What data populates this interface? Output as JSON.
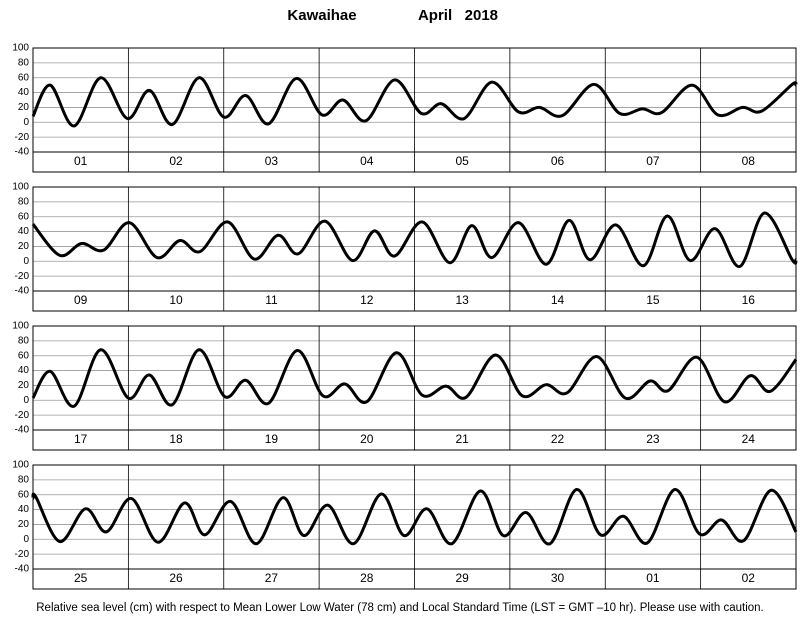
{
  "title": "Kawaihae",
  "subtitle": "April   2018",
  "note": "Relative sea level (cm) with respect to Mean Lower Low Water (78 cm) and Local Standard Time (LST = GMT –10 hr). Please use with caution.",
  "chart_data": [
    {
      "type": "line",
      "categories": [
        "01",
        "02",
        "03",
        "04",
        "05",
        "06",
        "07",
        "08"
      ],
      "x": [
        0,
        0.18,
        0.43,
        0.71,
        0.99,
        1.22,
        1.46,
        1.74,
        2.0,
        2.23,
        2.47,
        2.76,
        3.03,
        3.25,
        3.49,
        3.79,
        4.07,
        4.28,
        4.52,
        4.81,
        5.09,
        5.31,
        5.55,
        5.88,
        6.15,
        6.39,
        6.59,
        6.91,
        7.18,
        7.44,
        7.64,
        7.96,
        8
      ],
      "values": [
        8,
        50,
        -5,
        60,
        5,
        43,
        -3,
        60,
        7,
        36,
        -2,
        59,
        10,
        30,
        2,
        57,
        12,
        25,
        5,
        54,
        14,
        20,
        9,
        51,
        12,
        18,
        13,
        50,
        10,
        20,
        15,
        51,
        50
      ],
      "color": "#000000",
      "xlim": [
        0,
        8
      ],
      "xticks": [
        0,
        1,
        2,
        3,
        4,
        5,
        6,
        7,
        8
      ],
      "ylim": [
        -40,
        100
      ],
      "yticks": [
        -40,
        -20,
        0,
        20,
        40,
        60,
        80,
        100
      ],
      "grid": true
    },
    {
      "type": "line",
      "categories": [
        "09",
        "10",
        "11",
        "12",
        "13",
        "14",
        "15",
        "16"
      ],
      "x": [
        0,
        0.28,
        0.51,
        0.74,
        1.01,
        1.3,
        1.54,
        1.75,
        2.04,
        2.32,
        2.57,
        2.78,
        3.06,
        3.35,
        3.58,
        3.79,
        4.08,
        4.37,
        4.6,
        4.81,
        5.09,
        5.38,
        5.62,
        5.84,
        6.11,
        6.4,
        6.65,
        6.89,
        7.15,
        7.41,
        7.67,
        7.96,
        8
      ],
      "values": [
        50,
        8,
        24,
        15,
        52,
        5,
        28,
        13,
        53,
        3,
        35,
        10,
        54,
        1,
        41,
        7,
        53,
        -2,
        48,
        5,
        52,
        -4,
        55,
        2,
        49,
        -6,
        61,
        1,
        44,
        -7,
        65,
        2,
        2
      ],
      "color": "#000000",
      "xlim": [
        0,
        8
      ],
      "xticks": [
        0,
        1,
        2,
        3,
        4,
        5,
        6,
        7,
        8
      ],
      "ylim": [
        -40,
        100
      ],
      "yticks": [
        -40,
        -20,
        0,
        20,
        40,
        60,
        80,
        100
      ],
      "grid": true
    },
    {
      "type": "line",
      "categories": [
        "17",
        "18",
        "19",
        "20",
        "21",
        "22",
        "23",
        "24"
      ],
      "x": [
        0,
        0.18,
        0.43,
        0.71,
        1.0,
        1.22,
        1.46,
        1.74,
        2.01,
        2.23,
        2.47,
        2.77,
        3.04,
        3.27,
        3.5,
        3.81,
        4.08,
        4.33,
        4.54,
        4.85,
        5.13,
        5.38,
        5.6,
        5.91,
        6.21,
        6.47,
        6.66,
        6.96,
        7.25,
        7.52,
        7.73,
        8
      ],
      "values": [
        3,
        39,
        -8,
        68,
        3,
        34,
        -6,
        68,
        5,
        27,
        -4,
        67,
        6,
        22,
        -2,
        64,
        7,
        19,
        4,
        61,
        6,
        21,
        10,
        59,
        3,
        26,
        13,
        58,
        -2,
        33,
        12,
        55
      ],
      "color": "#000000",
      "xlim": [
        0,
        8
      ],
      "xticks": [
        0,
        1,
        2,
        3,
        4,
        5,
        6,
        7,
        8
      ],
      "ylim": [
        -40,
        100
      ],
      "yticks": [
        -40,
        -20,
        0,
        20,
        40,
        60,
        80,
        100
      ],
      "grid": true
    },
    {
      "type": "line",
      "categories": [
        "25",
        "26",
        "27",
        "28",
        "29",
        "30",
        "01",
        "02"
      ],
      "x": [
        0,
        0.03,
        0.28,
        0.55,
        0.77,
        1.03,
        1.31,
        1.59,
        1.8,
        2.07,
        2.34,
        2.62,
        2.84,
        3.09,
        3.36,
        3.65,
        3.89,
        4.13,
        4.39,
        4.69,
        4.93,
        5.17,
        5.42,
        5.7,
        5.95,
        6.19,
        6.44,
        6.73,
        6.99,
        7.22,
        7.45,
        7.74,
        8
      ],
      "values": [
        55,
        57,
        -3,
        41,
        10,
        55,
        -4,
        49,
        6,
        51,
        -6,
        56,
        5,
        46,
        -6,
        61,
        5,
        41,
        -6,
        65,
        5,
        36,
        -6,
        67,
        6,
        31,
        -5,
        67,
        7,
        26,
        -2,
        66,
        10
      ],
      "color": "#000000",
      "xlim": [
        0,
        8
      ],
      "xticks": [
        0,
        1,
        2,
        3,
        4,
        5,
        6,
        7,
        8
      ],
      "ylim": [
        -40,
        100
      ],
      "yticks": [
        -40,
        -20,
        0,
        20,
        40,
        60,
        80,
        100
      ],
      "grid": true
    }
  ]
}
